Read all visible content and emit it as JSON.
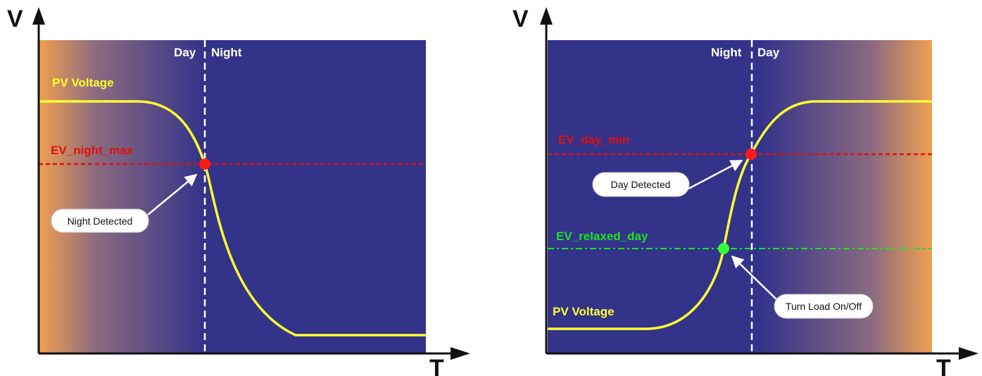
{
  "colors": {
    "night_blue": "#33338a",
    "day_orange": "#f0a050",
    "pv_curve": "#ffff33",
    "threshold_red": "#e01010",
    "threshold_green": "#22e022",
    "marker_red": "#ff1a1a",
    "marker_green": "#33ff33",
    "divider": "#ffffff",
    "axis": "#111111"
  },
  "left_panel": {
    "y_axis_label": "V",
    "x_axis_label": "T",
    "day_label": "Day",
    "night_label": "Night",
    "pv_label": "PV Voltage",
    "threshold_label": "EV_night_max",
    "callout": "Night Detected"
  },
  "right_panel": {
    "y_axis_label": "V",
    "x_axis_label": "T",
    "night_label": "Night",
    "day_label": "Day",
    "pv_label": "PV Voltage",
    "threshold_label": "EV_day_min",
    "relaxed_label": "EV_relaxed_day",
    "callout_day": "Day Detected",
    "callout_load": "Turn Load On/Off"
  }
}
